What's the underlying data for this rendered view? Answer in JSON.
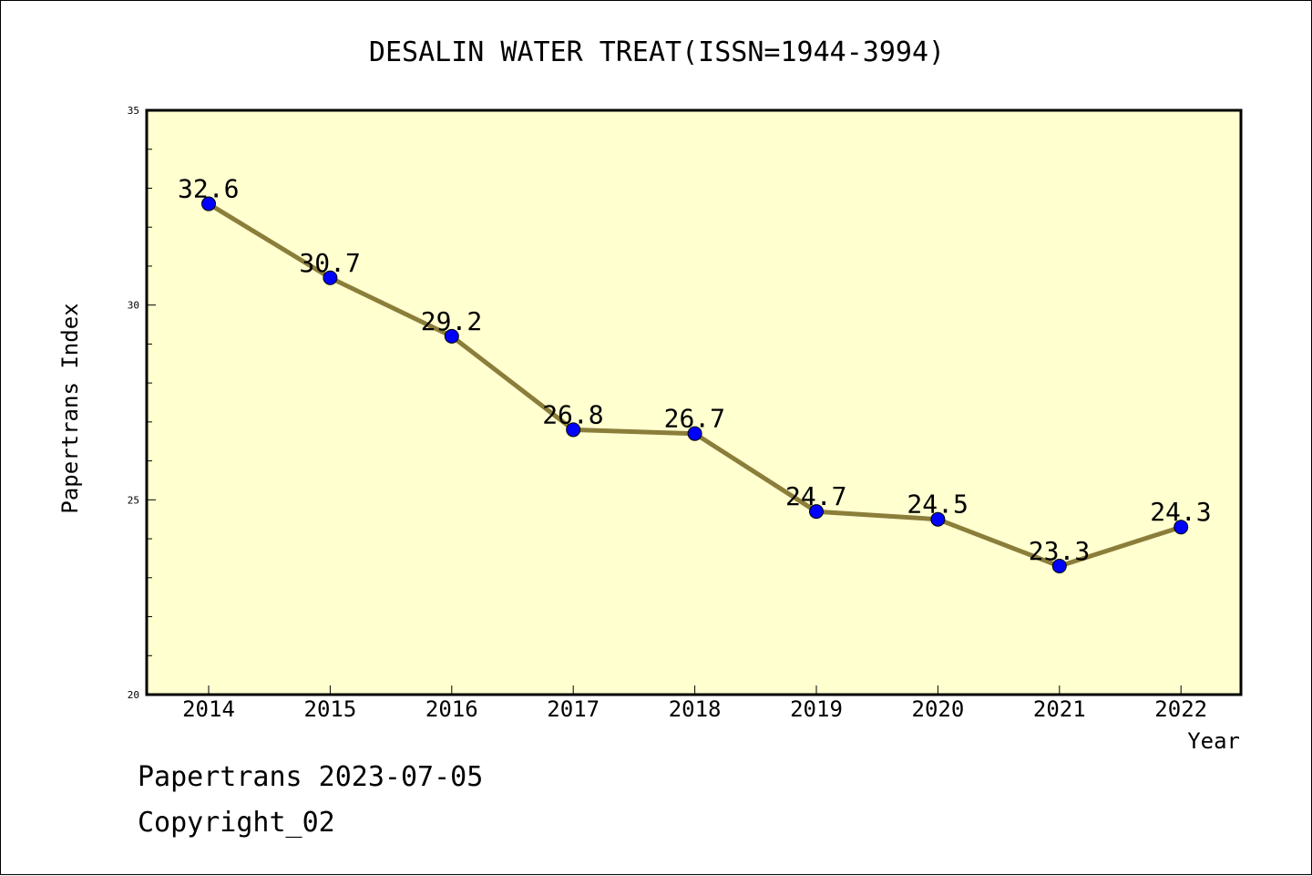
{
  "chart_data": {
    "type": "line",
    "title": "DESALIN WATER TREAT(ISSN=1944-3994)",
    "xlabel": "Year",
    "ylabel": "Papertrans Index",
    "categories": [
      "2014",
      "2015",
      "2016",
      "2017",
      "2018",
      "2019",
      "2020",
      "2021",
      "2022"
    ],
    "values": [
      32.6,
      30.7,
      29.2,
      26.8,
      26.7,
      24.7,
      24.5,
      23.3,
      24.3
    ],
    "data_labels": [
      "32.6",
      "30.7",
      "29.2",
      "26.8",
      "26.7",
      "24.7",
      "24.5",
      "23.3",
      "24.3"
    ],
    "ylim": [
      20,
      35
    ],
    "y_ticks": [
      20,
      25,
      30,
      35
    ],
    "y_tick_labels": [
      "20",
      "25",
      "30",
      "35"
    ],
    "y_minor_step": 1,
    "grid": false,
    "colors": {
      "plot_background": "#ffffd0",
      "line": "#8b7d3a",
      "marker": "#0000ff"
    }
  },
  "footer": {
    "line1": "Papertrans 2023-07-05",
    "line2": "Copyright_02"
  }
}
